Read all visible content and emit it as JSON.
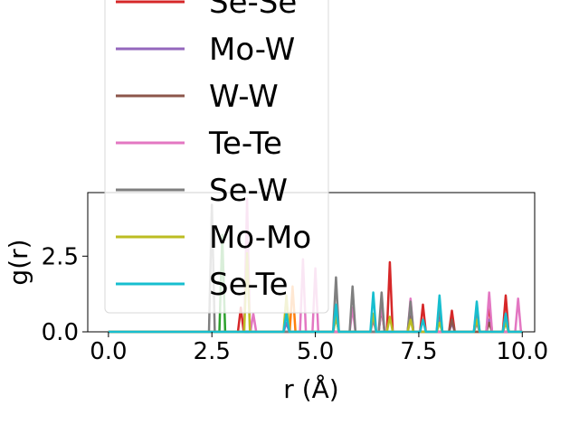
{
  "chart_data": {
    "type": "line",
    "title": "",
    "xlabel": "r (Å)",
    "ylabel": "g(r)",
    "xlim": [
      -0.5,
      10.3
    ],
    "ylim": [
      0,
      4.6
    ],
    "xticks": [
      0.0,
      2.5,
      5.0,
      7.5,
      10.0
    ],
    "xtick_labels": [
      "0.0",
      "2.5",
      "5.0",
      "7.5",
      "10.0"
    ],
    "yticks": [
      0.0,
      2.5
    ],
    "ytick_labels": [
      "0.0",
      "2.5"
    ],
    "grid": false,
    "legend_position": "upper-left, extending above the axes",
    "x": [
      0.0,
      2.5,
      2.6,
      2.7,
      3.2,
      3.35,
      3.5,
      4.3,
      4.7,
      5.0,
      5.5,
      5.9,
      6.4,
      6.6,
      6.8,
      7.3,
      7.6,
      8.0,
      8.3,
      8.9,
      9.2,
      9.6,
      9.9
    ],
    "series": [
      {
        "name": "Se-Se",
        "color": "#d62728",
        "values": [
          0,
          0,
          0,
          0,
          0.8,
          0,
          0,
          0,
          0,
          0,
          0,
          0,
          0,
          0,
          2.3,
          0.8,
          0.9,
          0.5,
          0.7,
          0.4,
          0.9,
          1.2,
          0
        ]
      },
      {
        "name": "Mo-W",
        "color": "#9467bd",
        "values": [
          0,
          0,
          0,
          0,
          0,
          0,
          0,
          0.3,
          0,
          0,
          0.6,
          0,
          0.4,
          0,
          0,
          0.6,
          0,
          0.4,
          0.3,
          0.3,
          0.4,
          0.3,
          0
        ]
      },
      {
        "name": "W-W",
        "color": "#8c564b",
        "values": [
          0,
          0,
          0,
          0,
          0,
          0,
          0,
          0,
          0,
          0,
          0.5,
          0,
          0,
          0.8,
          0,
          0.5,
          0,
          0,
          0.4,
          0,
          0.3,
          0,
          0
        ]
      },
      {
        "name": "Te-Te",
        "color": "#e377c2",
        "values": [
          0,
          0,
          0,
          0,
          0,
          4.4,
          0.6,
          0,
          2.4,
          2.1,
          0,
          0.8,
          0,
          0.9,
          0,
          1.1,
          0,
          0,
          0,
          0.7,
          1.3,
          0,
          1.1
        ]
      },
      {
        "name": "Se-W",
        "color": "#7f7f7f",
        "values": [
          0,
          4.2,
          0,
          0,
          0,
          0,
          0,
          0,
          0,
          0,
          1.8,
          1.5,
          0,
          1.3,
          0,
          1.0,
          0,
          0.8,
          0,
          0.8,
          0,
          0.6,
          0
        ]
      },
      {
        "name": "Mo-Mo",
        "color": "#bcbd22",
        "values": [
          0,
          0,
          0,
          0,
          0,
          2.6,
          0,
          1.2,
          0,
          0,
          0.5,
          0,
          0.6,
          0,
          0.5,
          0.4,
          0,
          0.3,
          0,
          0.4,
          0,
          0.3,
          0
        ]
      },
      {
        "name": "Se-Te",
        "color": "#17becf",
        "values": [
          0,
          0,
          0,
          0,
          0,
          0,
          0,
          0.6,
          0,
          0,
          0.9,
          0,
          1.3,
          0,
          0,
          0,
          0.4,
          1.2,
          0,
          1.0,
          0,
          0.6,
          0
        ]
      }
    ],
    "hidden_behind_legend": [
      {
        "color": "#2ca02c",
        "x": [
          2.75
        ],
        "values": [
          3.2
        ]
      },
      {
        "color": "#ff7f0e",
        "x": [
          4.45
        ],
        "values": [
          1.5
        ]
      }
    ]
  }
}
